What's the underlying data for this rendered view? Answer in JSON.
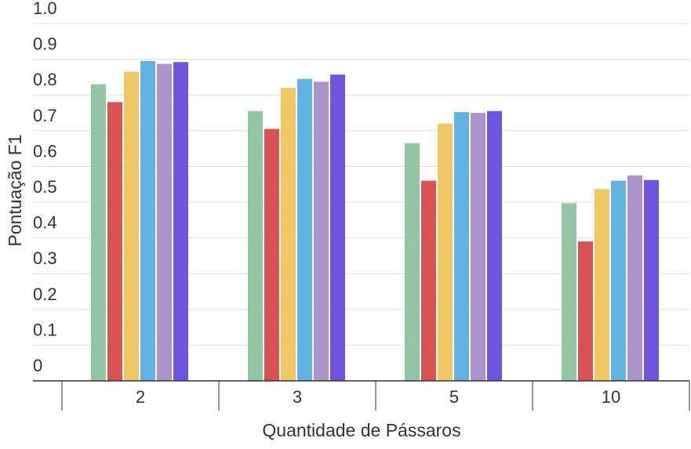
{
  "chart_data": {
    "type": "bar",
    "title": "",
    "xlabel": "Quantidade de Pássaros",
    "ylabel": "Pontuação F1",
    "ylim": [
      0,
      1.0
    ],
    "yticks": [
      "0",
      "0.1",
      "0.2",
      "0.3",
      "0.4",
      "0.5",
      "0.6",
      "0.7",
      "0.8",
      "0.9",
      "1.0"
    ],
    "categories": [
      "2",
      "3",
      "5",
      "10"
    ],
    "grid": true,
    "legend": "none",
    "series": [
      {
        "color": "#93c4a6",
        "values": [
          0.83,
          0.755,
          0.665,
          0.497
        ]
      },
      {
        "color": "#d95252",
        "values": [
          0.78,
          0.705,
          0.56,
          0.39
        ]
      },
      {
        "color": "#efc865",
        "values": [
          0.865,
          0.82,
          0.72,
          0.537
        ]
      },
      {
        "color": "#62b2e4",
        "values": [
          0.895,
          0.845,
          0.752,
          0.56
        ]
      },
      {
        "color": "#ac94cb",
        "values": [
          0.887,
          0.837,
          0.75,
          0.575
        ]
      },
      {
        "color": "#6e54de",
        "values": [
          0.892,
          0.857,
          0.755,
          0.562
        ]
      }
    ]
  }
}
